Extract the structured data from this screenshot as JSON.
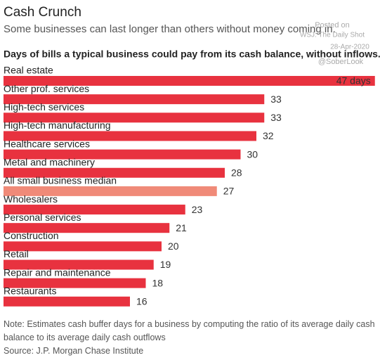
{
  "chart_data": {
    "type": "bar",
    "orientation": "horizontal",
    "title": "Cash Crunch",
    "subtitle": "Some businesses can last longer than others without money coming in.",
    "heading": "Days of bills a typical business could pay from its cash balance, without inflows.",
    "annotations": [
      "Posted on",
      "WSJ: The Daily Shot",
      "28-Apr-2020",
      "@SoberLook"
    ],
    "categories": [
      "Real estate",
      "Other prof. services",
      "High-tech services",
      "High-tech manufacturing",
      "Healthcare services",
      "Metal and machinery",
      "All small business median",
      "Wholesalers",
      "Personal services",
      "Construction",
      "Retail",
      "Repair and maintenance",
      "Restaurants"
    ],
    "values": [
      47,
      33,
      33,
      32,
      30,
      28,
      27,
      23,
      21,
      20,
      19,
      18,
      16
    ],
    "value_labels": [
      "47 days",
      "33",
      "33",
      "32",
      "30",
      "28",
      "27",
      "23",
      "21",
      "20",
      "19",
      "18",
      "16"
    ],
    "colors": [
      "#e8323f",
      "#e8323f",
      "#e8323f",
      "#e8323f",
      "#e8323f",
      "#e8323f",
      "#f08a78",
      "#e8323f",
      "#e8323f",
      "#e8323f",
      "#e8323f",
      "#e8323f",
      "#e8323f"
    ],
    "xlim": [
      0,
      47.2
    ],
    "note": "Note: Estimates cash buffer days for a business by computing the ratio of its average daily cash balance to its average daily cash outflows",
    "source": "Source: J.P. Morgan Chase Institute"
  }
}
